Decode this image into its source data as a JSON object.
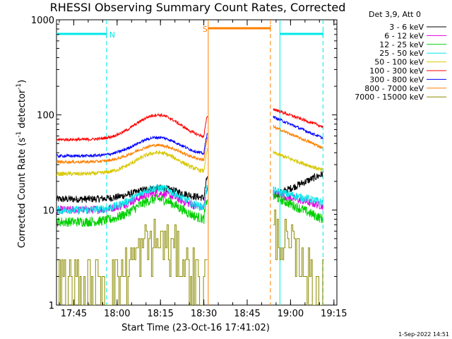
{
  "chart_data": {
    "type": "line",
    "title": "RHESSI Observing Summary Count Rates, Corrected",
    "xlabel": "Start Time (23-Oct-16 17:41:02)",
    "ylabel": "Corrected Count Rate (s⁻¹ detector⁻¹)",
    "ylabel_parts": [
      "Corrected Count Rate (s",
      "-1",
      " detector",
      "-1",
      ")"
    ],
    "yscale": "log",
    "ylim": [
      1,
      1000
    ],
    "xlim_minutes": [
      -2,
      95
    ],
    "x_ticks": [
      {
        "label": "17:45",
        "minute": 3.97
      },
      {
        "label": "18:00",
        "minute": 18.97
      },
      {
        "label": "18:15",
        "minute": 33.97
      },
      {
        "label": "18:30",
        "minute": 48.97
      },
      {
        "label": "18:45",
        "minute": 63.97
      },
      {
        "label": "19:00",
        "minute": 78.97
      },
      {
        "label": "19:15",
        "minute": 93.97
      }
    ],
    "y_ticks": [
      {
        "label": "1",
        "value": 1
      },
      {
        "label": "10",
        "value": 10
      },
      {
        "label": "100",
        "value": 100
      },
      {
        "label": "1000",
        "value": 1000
      }
    ],
    "legend_header": "Det 3,9, Att 0",
    "legend_placement": "right",
    "grid": false,
    "gap_minutes": [
      50.5,
      72.5
    ],
    "series": [
      {
        "name": "3 - 6 keV",
        "color": "#000000",
        "kind": "hump",
        "pre_level": 13,
        "peak": 17,
        "pre_end": 50.2,
        "post_start": 73,
        "post_end": 90.2,
        "post_from": 14,
        "post_to": 24,
        "noise": 0.09
      },
      {
        "name": "6 - 12 keV",
        "color": "#e000e0",
        "kind": "hump",
        "pre_level": 10,
        "peak": 15,
        "pre_end": 50.2,
        "post_start": 73,
        "post_end": 90.2,
        "post_from": 15,
        "post_to": 11,
        "noise": 0.1
      },
      {
        "name": "12 - 25 keV",
        "color": "#00d000",
        "kind": "hump",
        "pre_level": 7.5,
        "peak": 13,
        "pre_end": 50.2,
        "post_start": 73,
        "post_end": 90.2,
        "post_from": 14,
        "post_to": 8,
        "noise": 0.12
      },
      {
        "name": "25 - 50 keV",
        "color": "#00e8e8",
        "kind": "hump",
        "pre_level": 10,
        "peak": 17,
        "pre_end": 50.2,
        "post_start": 73,
        "post_end": 90.2,
        "post_from": 16,
        "post_to": 12,
        "noise": 0.1
      },
      {
        "name": "50 - 100 keV",
        "color": "#d8c800",
        "kind": "hump",
        "pre_level": 24,
        "peak": 40,
        "pre_end": 50.2,
        "post_start": 73,
        "post_end": 90.2,
        "post_from": 40,
        "post_to": 26,
        "noise": 0.05
      },
      {
        "name": "100 - 300 keV",
        "color": "#ff0000",
        "kind": "hump",
        "pre_level": 55,
        "peak": 100,
        "pre_end": 50.2,
        "post_start": 73,
        "post_end": 90.2,
        "post_from": 115,
        "post_to": 75,
        "noise": 0.035
      },
      {
        "name": "300 - 800 keV",
        "color": "#0000ff",
        "kind": "hump",
        "pre_level": 37,
        "peak": 58,
        "pre_end": 50.2,
        "post_start": 73,
        "post_end": 90.2,
        "post_from": 95,
        "post_to": 57,
        "noise": 0.035
      },
      {
        "name": "800 - 7000 keV",
        "color": "#ff8000",
        "kind": "hump",
        "pre_level": 32,
        "peak": 48,
        "pre_end": 50.2,
        "post_start": 73,
        "post_end": 90.2,
        "post_from": 75,
        "post_to": 45,
        "noise": 0.035
      },
      {
        "name": "7000 - 15000 keV",
        "color": "#8b8b00",
        "kind": "steps",
        "pre_level": 1.6,
        "peak": 4.5,
        "pre_end": 50.2,
        "post_start": 73,
        "post_end": 90.2,
        "post_from": 6,
        "post_to": 1.4,
        "noise": 0.3
      }
    ],
    "annotations": [
      {
        "label": "N",
        "kind": "night",
        "color": "#00e8e8",
        "minute_from": -2,
        "minute_to": 15.3
      },
      {
        "label": "",
        "kind": "night",
        "color": "#00e8e8",
        "minute_from": 75.3,
        "minute_to": 90.2
      },
      {
        "label": "S",
        "kind": "saa",
        "color": "#ff8000",
        "minute_from": 50.5,
        "minute_to": 72
      }
    ],
    "vertical_markers": [
      {
        "minute": 15.3,
        "color": "#00e8e8",
        "style": "dashed"
      },
      {
        "minute": 50.5,
        "color": "#ff8000",
        "style": "solid"
      },
      {
        "minute": 72.0,
        "color": "#ff8000",
        "style": "dashed"
      },
      {
        "minute": 75.3,
        "color": "#00e8e8",
        "style": "solid"
      },
      {
        "minute": 90.2,
        "color": "#00e8e8",
        "style": "dashed"
      }
    ],
    "footer_timestamp": "1-Sep-2022 14:51"
  }
}
